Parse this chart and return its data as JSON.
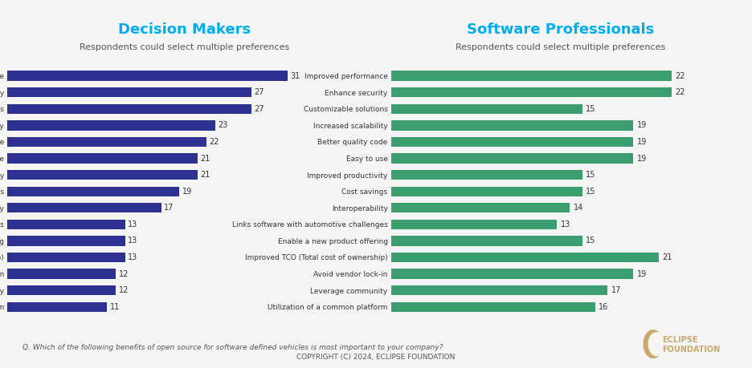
{
  "left_title": "Decision Makers",
  "right_title": "Software Professionals",
  "subtitle": "Respondents could select multiple preferences",
  "left_color": "#2e3192",
  "right_color": "#3a9e6f",
  "title_color_left": "#00aeef",
  "title_color_right": "#00aeef",
  "left_categories": [
    "Improved performance",
    "Enhance security",
    "Customizable solutions",
    "Increased scalability",
    "Better quality code",
    "Easy to use",
    "Improved productivity",
    "Cost savings",
    "Interoperability",
    "Links software with automotive challenges",
    "Enable a new product offering",
    "Improved TCO (Total cost of ownership)",
    "Avoid vendor lock-in",
    "Leverage community",
    "Utilization of a common platform"
  ],
  "left_values": [
    31,
    27,
    27,
    23,
    22,
    21,
    21,
    19,
    17,
    13,
    13,
    13,
    12,
    12,
    11
  ],
  "right_categories": [
    "Improved performance",
    "Enhance security",
    "Customizable solutions",
    "Increased scalability",
    "Better quality code",
    "Easy to use",
    "Improved productivity",
    "Cost savings",
    "Interoperability",
    "Links software with automotive challenges",
    "Enable a new product offering",
    "Improved TCO (Total cost of ownership)",
    "Avoid vendor lock-in",
    "Leverage community",
    "Utilization of a common platform"
  ],
  "right_values": [
    22,
    22,
    15,
    19,
    19,
    19,
    15,
    15,
    14,
    13,
    15,
    21,
    19,
    17,
    16
  ],
  "footnote": "Q. Which of the following benefits of open source for software defined vehicles is most important to your company?",
  "copyright": "COPYRIGHT (C) 2024, ECLIPSE FOUNDATION",
  "bg_color": "#f5f5f5",
  "label_fontsize": 6.5,
  "title_fontsize": 13,
  "subtitle_fontsize": 8,
  "value_fontsize": 7
}
